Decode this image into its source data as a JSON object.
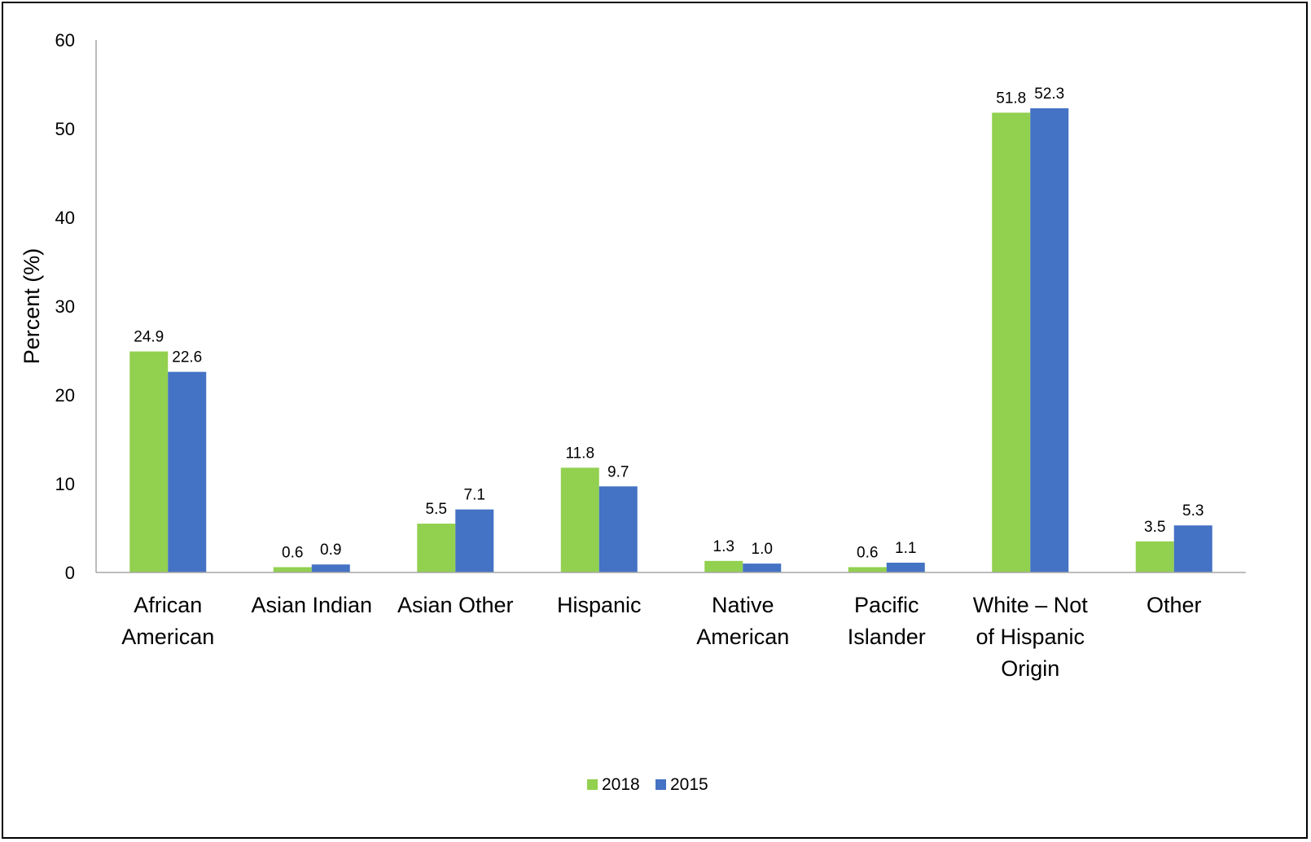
{
  "chart_data": {
    "type": "bar",
    "ylabel": "Percent (%)",
    "xlabel": "",
    "ylim": [
      0,
      60
    ],
    "yticks": [
      0,
      10,
      20,
      30,
      40,
      50,
      60
    ],
    "grid": false,
    "legend_position": "bottom-center",
    "categories": [
      [
        "African",
        "American"
      ],
      [
        "Asian Indian"
      ],
      [
        "Asian Other"
      ],
      [
        "Hispanic"
      ],
      [
        "Native",
        "American"
      ],
      [
        "Pacific",
        "Islander"
      ],
      [
        "White – Not",
        "of Hispanic",
        "Origin"
      ],
      [
        "Other"
      ]
    ],
    "series": [
      {
        "name": "2018",
        "color": "#92D050",
        "values": [
          24.9,
          0.6,
          5.5,
          11.8,
          1.3,
          0.6,
          51.8,
          3.5
        ],
        "labels": [
          "24.9",
          "0.6",
          "5.5",
          "11.8",
          "1.3",
          "0.6",
          "51.8",
          "3.5"
        ]
      },
      {
        "name": "2015",
        "color": "#4472C4",
        "values": [
          22.6,
          0.9,
          7.1,
          9.7,
          1.0,
          1.1,
          52.3,
          5.3
        ],
        "labels": [
          "22.6",
          "0.9",
          "7.1",
          "9.7",
          "1.0",
          "1.1",
          "52.3",
          "5.3"
        ]
      }
    ]
  }
}
